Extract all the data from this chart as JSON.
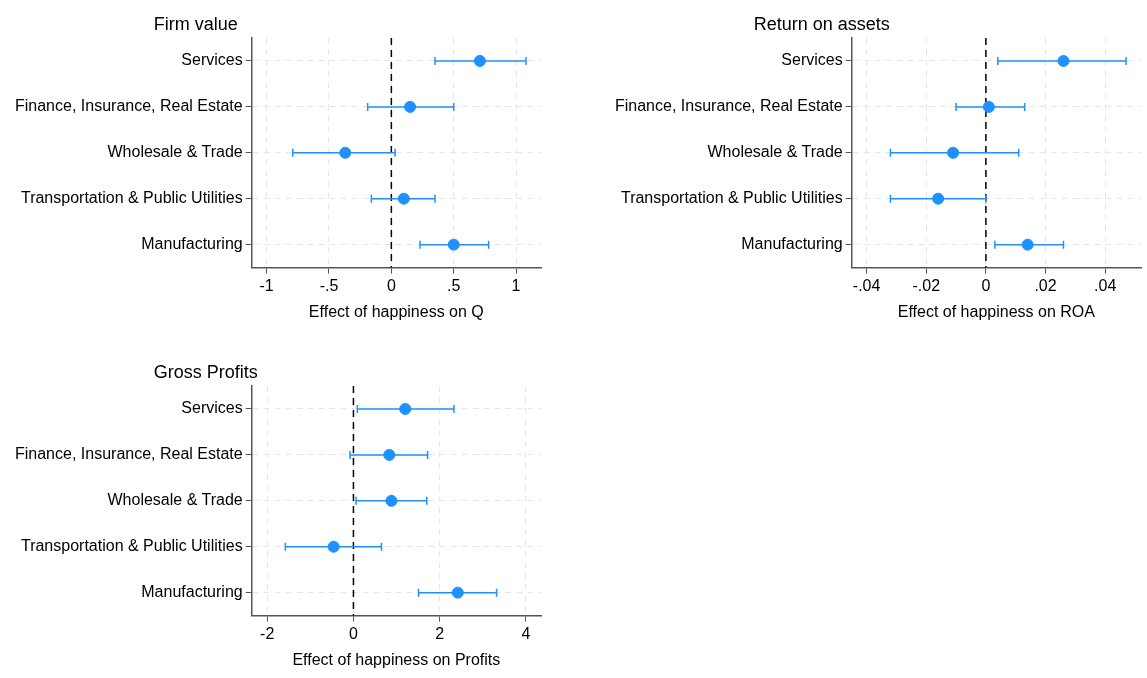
{
  "chart_data": [
    {
      "type": "scatter",
      "title": "Firm value",
      "xlabel": "Effect of happiness on Q",
      "orientation": "horizontal",
      "categories": [
        "Services",
        "Finance, Insurance, Real Estate",
        "Wholesale & Trade",
        "Transportation & Public Utilities",
        "Manufacturing"
      ],
      "series": [
        {
          "color": "#1e90ff",
          "values": [
            0.71,
            0.15,
            -0.37,
            0.1,
            0.5
          ],
          "errors": [
            [
              0.35,
              1.08
            ],
            [
              -0.19,
              0.5
            ],
            [
              -0.79,
              0.03
            ],
            [
              -0.16,
              0.35
            ],
            [
              0.23,
              0.78
            ]
          ]
        }
      ],
      "xlim": [
        -1.12,
        1.2
      ],
      "xticks": [
        -1,
        {
          "value": -0.5,
          "label": "-.5"
        },
        0,
        {
          "value": 0.5,
          "label": ".5"
        },
        1
      ],
      "ref_lines": [
        {
          "axis": "x",
          "value": 0,
          "line_style": "dashed",
          "color": "#000000"
        }
      ],
      "grid": true,
      "marker": "circle"
    },
    {
      "type": "scatter",
      "title": "Return on assets",
      "xlabel": "Effect of happiness on ROA",
      "orientation": "horizontal",
      "categories": [
        "Services",
        "Finance, Insurance, Real Estate",
        "Wholesale & Trade",
        "Transportation & Public Utilities",
        "Manufacturing"
      ],
      "series": [
        {
          "color": "#1e90ff",
          "values": [
            0.026,
            0.001,
            -0.011,
            -0.016,
            0.014
          ],
          "errors": [
            [
              0.004,
              0.047
            ],
            [
              -0.01,
              0.013
            ],
            [
              -0.032,
              0.011
            ],
            [
              -0.032,
              0.0
            ],
            [
              0.003,
              0.026
            ]
          ]
        }
      ],
      "xlim": [
        -0.045,
        0.052
      ],
      "xticks": [
        {
          "value": -0.04,
          "label": "-.04"
        },
        {
          "value": -0.02,
          "label": "-.02"
        },
        0,
        {
          "value": 0.02,
          "label": ".02"
        },
        {
          "value": 0.04,
          "label": ".04"
        }
      ],
      "ref_lines": [
        {
          "axis": "x",
          "value": 0,
          "line_style": "dashed",
          "color": "#000000"
        }
      ],
      "grid": true,
      "marker": "circle"
    },
    {
      "type": "scatter",
      "title": "Gross Profits",
      "xlabel": "Effect of happiness on Profits",
      "orientation": "horizontal",
      "categories": [
        "Services",
        "Finance, Insurance, Real Estate",
        "Wholesale & Trade",
        "Transportation & Public Utilities",
        "Manufacturing"
      ],
      "series": [
        {
          "color": "#1e90ff",
          "values": [
            1.2,
            0.83,
            0.88,
            -0.46,
            2.42
          ],
          "errors": [
            [
              0.09,
              2.33
            ],
            [
              -0.08,
              1.72
            ],
            [
              0.06,
              1.7
            ],
            [
              -1.58,
              0.65
            ],
            [
              1.51,
              3.32
            ]
          ]
        }
      ],
      "xlim": [
        -2.36,
        4.35
      ],
      "xticks": [
        -2,
        0,
        2,
        4
      ],
      "ref_lines": [
        {
          "axis": "x",
          "value": 0,
          "line_style": "dashed",
          "color": "#000000"
        }
      ],
      "grid": true,
      "marker": "circle"
    }
  ]
}
